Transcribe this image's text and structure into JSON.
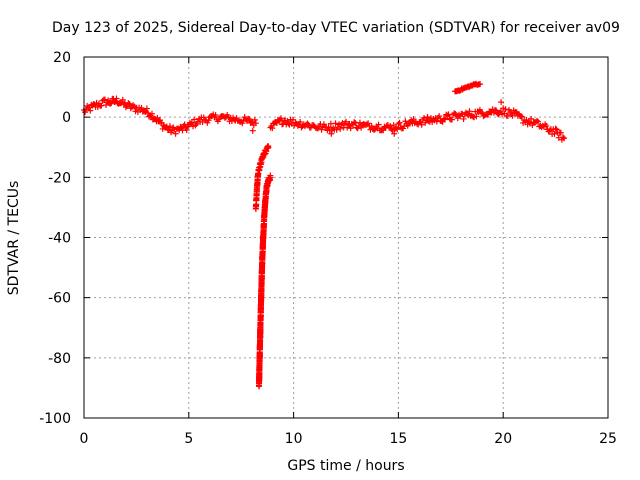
{
  "chart_data": {
    "type": "scatter",
    "title": "Day 123 of 2025, Sidereal Day-to-day VTEC variation (SDTVAR) for receiver av09",
    "xlabel": "GPS time / hours",
    "ylabel": "SDTVAR / TECUs",
    "xlim": [
      0,
      25
    ],
    "ylim": [
      -100,
      20
    ],
    "xticks": [
      0,
      5,
      10,
      15,
      20,
      25
    ],
    "yticks": [
      -100,
      -80,
      -60,
      -40,
      -20,
      0,
      20
    ],
    "grid": true,
    "marker": "+",
    "color": "#ff0000",
    "series": [
      {
        "name": "SDTVAR",
        "trend": [
          [
            0.0,
            2
          ],
          [
            0.3,
            3
          ],
          [
            0.6,
            4
          ],
          [
            1.0,
            5
          ],
          [
            1.3,
            5
          ],
          [
            1.6,
            5.5
          ],
          [
            2.0,
            4
          ],
          [
            2.4,
            3
          ],
          [
            2.8,
            2.5
          ],
          [
            3.2,
            1
          ],
          [
            3.5,
            -1
          ],
          [
            3.8,
            -3
          ],
          [
            4.2,
            -4.5
          ],
          [
            4.6,
            -4
          ],
          [
            4.9,
            -3.5
          ],
          [
            5.2,
            -2
          ],
          [
            5.6,
            -1
          ],
          [
            6.0,
            -0.5
          ],
          [
            6.5,
            0
          ],
          [
            7.0,
            -0.5
          ],
          [
            7.5,
            -1
          ],
          [
            8.0,
            -1.5
          ],
          [
            8.2,
            -2
          ]
        ],
        "dip_1": [
          [
            8.2,
            -30
          ],
          [
            8.25,
            -24
          ],
          [
            8.3,
            -19
          ],
          [
            8.4,
            -16
          ],
          [
            8.5,
            -14
          ],
          [
            8.6,
            -12
          ],
          [
            8.7,
            -11
          ],
          [
            8.8,
            -10
          ]
        ],
        "dip_2": [
          [
            8.35,
            -89
          ],
          [
            8.38,
            -80
          ],
          [
            8.42,
            -68
          ],
          [
            8.46,
            -58
          ],
          [
            8.5,
            -48
          ],
          [
            8.55,
            -40
          ],
          [
            8.6,
            -33
          ],
          [
            8.66,
            -27
          ],
          [
            8.72,
            -23
          ],
          [
            8.8,
            -21
          ],
          [
            8.9,
            -20
          ]
        ],
        "trend_2": [
          [
            8.9,
            -4
          ],
          [
            9.2,
            -2
          ],
          [
            9.5,
            -1
          ],
          [
            9.8,
            -1.5
          ],
          [
            10.2,
            -2
          ],
          [
            10.6,
            -2.5
          ],
          [
            11.0,
            -3
          ],
          [
            11.5,
            -3.5
          ],
          [
            12.0,
            -3
          ],
          [
            12.5,
            -2.5
          ],
          [
            13.0,
            -2.5
          ],
          [
            13.5,
            -3
          ],
          [
            14.0,
            -3
          ],
          [
            14.5,
            -3.5
          ],
          [
            15.0,
            -3
          ],
          [
            15.5,
            -2
          ],
          [
            16.0,
            -1.5
          ],
          [
            16.5,
            -1
          ],
          [
            17.0,
            -0.5
          ],
          [
            17.5,
            0
          ],
          [
            18.0,
            0.5
          ],
          [
            18.5,
            1
          ],
          [
            19.0,
            1.5
          ],
          [
            19.5,
            2
          ],
          [
            20.0,
            2
          ],
          [
            20.5,
            1
          ],
          [
            21.0,
            -1
          ],
          [
            21.5,
            -2
          ],
          [
            22.0,
            -3.5
          ],
          [
            22.5,
            -5
          ],
          [
            22.9,
            -7
          ]
        ],
        "branch": [
          [
            17.7,
            8.5
          ],
          [
            17.9,
            9
          ],
          [
            18.1,
            9.5
          ],
          [
            18.3,
            10
          ],
          [
            18.5,
            10.5
          ],
          [
            18.7,
            11
          ],
          [
            18.9,
            11
          ]
        ],
        "outliers": [
          [
            19.9,
            5
          ],
          [
            8.05,
            -4.5
          ],
          [
            11.8,
            -5.5
          ],
          [
            14.8,
            -5.5
          ]
        ]
      }
    ]
  }
}
